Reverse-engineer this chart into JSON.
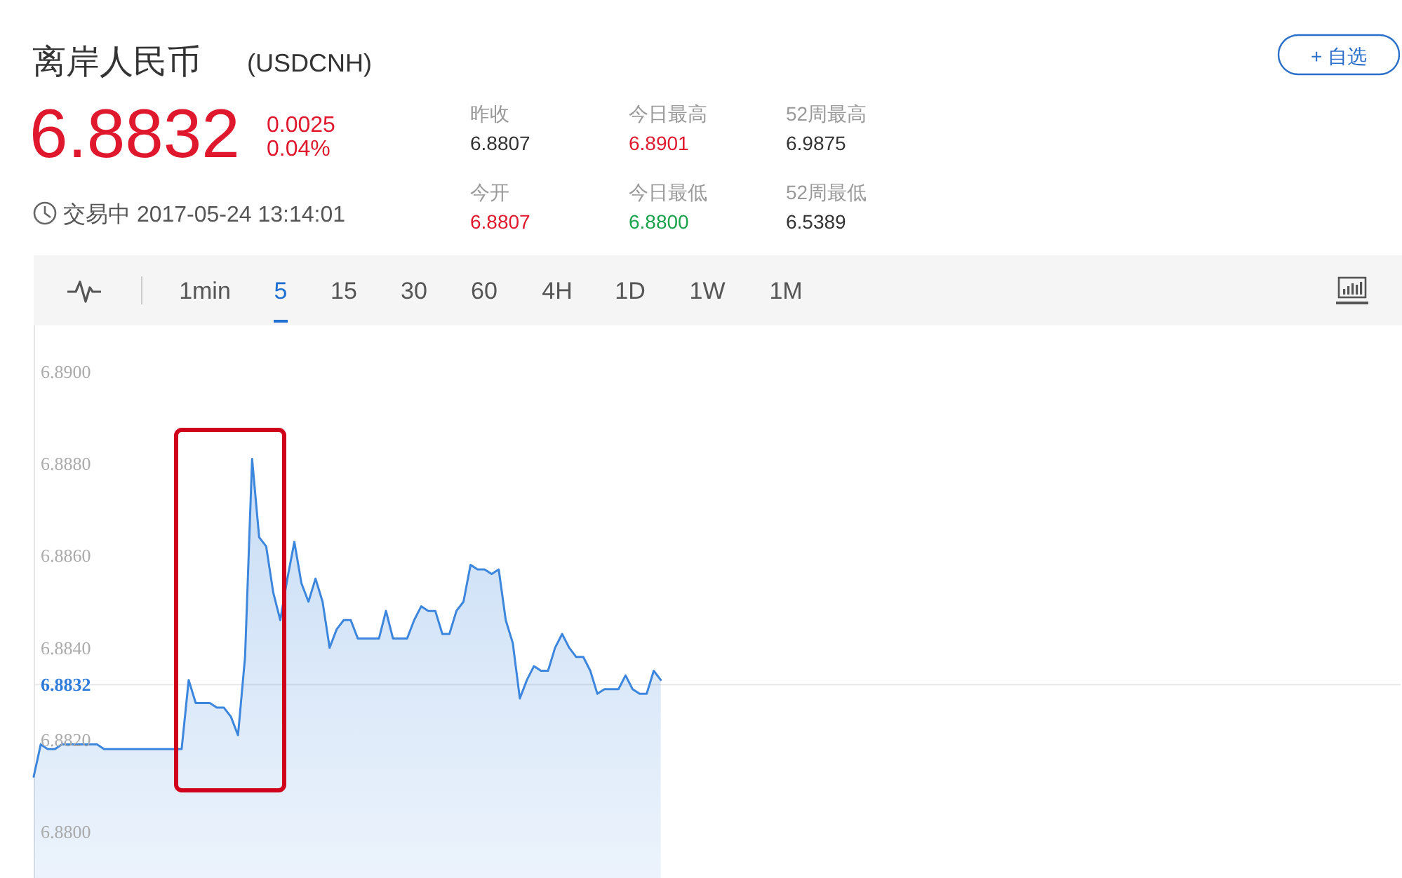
{
  "chart_data": [
    {
      "type": "other",
      "title": "离岸人民币",
      "subtitle": "(USDCNH)",
      "annotations": [
        "+ 自选",
        "6.8832",
        "0.0025",
        "0.04%",
        "昨收",
        "今日最高",
        "52周最高",
        "6.8807",
        "6.8901",
        "6.9875",
        "交易中 2017-05-24 13:14:01",
        "今开",
        "今日最低",
        "52周最低",
        "6.8807",
        "6.8800",
        "6.5389",
        "1min",
        "5",
        "15",
        "30",
        "60",
        "4H",
        "1D",
        "1W",
        "1M"
      ]
    },
    {
      "type": "area",
      "color": "#3d86dd",
      "categories": [
        null,
        null,
        null,
        null,
        null,
        null,
        null,
        null,
        null,
        null,
        null,
        null,
        null,
        null,
        null,
        null,
        null,
        null,
        null,
        null,
        null,
        null,
        null,
        null,
        null,
        null,
        null,
        null,
        null,
        null,
        null,
        null,
        null,
        null,
        null,
        null,
        null,
        null,
        null,
        null,
        null,
        null,
        null,
        null,
        null,
        null,
        null,
        null,
        null,
        null,
        null,
        null,
        null,
        null,
        null,
        null,
        null,
        null,
        null,
        null,
        null,
        null,
        null,
        null,
        null,
        null,
        null,
        null,
        null,
        null,
        null,
        null,
        null,
        null,
        null,
        null,
        null,
        null,
        null,
        null,
        null,
        null,
        null,
        null,
        null,
        null,
        null,
        null,
        null,
        null,
        null,
        null,
        null,
        null,
        null,
        null,
        null,
        null,
        null,
        null,
        null,
        null,
        null,
        null,
        null,
        null,
        null,
        null,
        null,
        null,
        null,
        null,
        null,
        null,
        null,
        null,
        null,
        null,
        null,
        null,
        null,
        null,
        null,
        null,
        null,
        null,
        null,
        null,
        null,
        null,
        null,
        null,
        null,
        null,
        null,
        null,
        null,
        null,
        null,
        null,
        null,
        null,
        null,
        null,
        null,
        null,
        null,
        null,
        null,
        null,
        null,
        null,
        null,
        null,
        null,
        null,
        null,
        null,
        null,
        null,
        null,
        null,
        null,
        null,
        null,
        null,
        null,
        null,
        null,
        null,
        null,
        null,
        null,
        null,
        null,
        null,
        null,
        null,
        null,
        null,
        null,
        null,
        null,
        null,
        null,
        null,
        null,
        null,
        null,
        null,
        null,
        null,
        null,
        null,
        null
      ],
      "values": [
        6.8812,
        6.8819,
        6.8818,
        6.8818,
        6.8819,
        6.8819,
        6.8819,
        6.8819,
        6.8819,
        6.8819,
        6.8818,
        6.8818,
        6.8818,
        6.8818,
        6.8818,
        6.8818,
        6.8818,
        6.8818,
        6.8818,
        6.8818,
        6.8818,
        6.8818,
        6.8833,
        6.8828,
        6.8828,
        6.8828,
        6.8827,
        6.8827,
        6.8825,
        6.8821,
        6.8838,
        6.8881,
        6.8864,
        6.8862,
        6.8852,
        6.8846,
        6.8855,
        6.8863,
        6.8854,
        6.885,
        6.8855,
        6.885,
        6.884,
        6.8844,
        6.8846,
        6.8846,
        6.8842,
        6.8842,
        6.8842,
        6.8842,
        6.8848,
        6.8842,
        6.8842,
        6.8842,
        6.8846,
        6.8849,
        6.8848,
        6.8848,
        6.8843,
        6.8843,
        6.8848,
        6.885,
        6.8858,
        6.8857,
        6.8857,
        6.8856,
        6.8857,
        6.8846,
        6.8841,
        6.8829,
        6.8833,
        6.8836,
        6.8835,
        6.8835,
        6.884,
        6.8843,
        6.884,
        6.8838,
        6.8838,
        6.8835,
        6.883,
        6.8831,
        6.8831,
        6.8831,
        6.8834,
        6.8831,
        6.883,
        6.883,
        6.8835,
        6.8833,
        null,
        null,
        null,
        null,
        null,
        null,
        null,
        null,
        null,
        null,
        null,
        null,
        null,
        null,
        null,
        null,
        null,
        null,
        null,
        null,
        null,
        null,
        null,
        null,
        null,
        null,
        null,
        null,
        null,
        null,
        null,
        null,
        null,
        null,
        null,
        null,
        null,
        null,
        null,
        null,
        null,
        null,
        null,
        null,
        null,
        null,
        null,
        null,
        null,
        null,
        null,
        null,
        null,
        null,
        null,
        null,
        null,
        null,
        null,
        null,
        null,
        null,
        null,
        null,
        null,
        null,
        null,
        null,
        null,
        null,
        null,
        null,
        null,
        null,
        null,
        null,
        null,
        null,
        null,
        null,
        null,
        null,
        null,
        null,
        null,
        null,
        null,
        null,
        null,
        null,
        null,
        null,
        null,
        null,
        null,
        null,
        null,
        null,
        null,
        null,
        null,
        null,
        null,
        null,
        null
      ],
      "ylim": [
        6.879,
        6.891
      ],
      "yticks": [
        {
          "value": 6.88,
          "label": "6.8800"
        },
        {
          "value": 6.882,
          "label": "6.8820"
        },
        {
          "value": 6.884,
          "label": "6.8840"
        },
        {
          "value": 6.886,
          "label": "6.8860"
        },
        {
          "value": 6.888,
          "label": "6.8880"
        },
        {
          "value": 6.89,
          "label": "6.8900"
        }
      ],
      "ref_lines": [
        {
          "axis": "y",
          "value": 6.8832,
          "label": "6.8832",
          "color": "#e8e8e8"
        }
      ]
    }
  ]
}
